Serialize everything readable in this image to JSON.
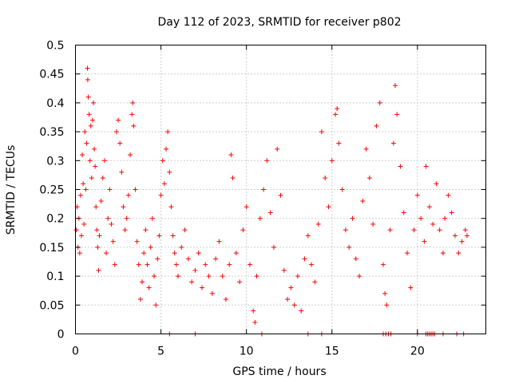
{
  "chart_data": {
    "type": "scatter",
    "title": "Day 112 of 2023, SRMTID for receiver p802",
    "xlabel": "GPS time / hours",
    "ylabel": "SRMTID / TECUs",
    "xlim": [
      0,
      24
    ],
    "ylim": [
      0,
      0.5
    ],
    "xticks": [
      0,
      5,
      10,
      15,
      20
    ],
    "xtick_labels": [
      "0",
      "5",
      "10",
      "15",
      "20"
    ],
    "yticks": [
      0,
      0.05,
      0.1,
      0.15,
      0.2,
      0.25,
      0.3,
      0.35,
      0.4,
      0.45,
      0.5
    ],
    "ytick_labels": [
      "0",
      "0.05",
      "0.1",
      "0.15",
      "0.2",
      "0.25",
      "0.3",
      "0.35",
      "0.4",
      "0.45",
      "0.5"
    ],
    "grid": true,
    "marker": "+",
    "color": "#ff0000",
    "series": [
      {
        "name": "SRMTID",
        "points": [
          [
            0.05,
            0.18
          ],
          [
            0.1,
            0.22
          ],
          [
            0.15,
            0.15
          ],
          [
            0.2,
            0.2
          ],
          [
            0.25,
            0.14
          ],
          [
            0.3,
            0.24
          ],
          [
            0.35,
            0.17
          ],
          [
            0.4,
            0.31
          ],
          [
            0.45,
            0.26
          ],
          [
            0.5,
            0.19
          ],
          [
            0.55,
            0.35
          ],
          [
            0.6,
            0.25
          ],
          [
            0.65,
            0.33
          ],
          [
            0.7,
            0.46
          ],
          [
            0.72,
            0.44
          ],
          [
            0.75,
            0.41
          ],
          [
            0.8,
            0.38
          ],
          [
            0.85,
            0.3
          ],
          [
            0.9,
            0.36
          ],
          [
            0.95,
            0.27
          ],
          [
            1.0,
            0.37
          ],
          [
            1.05,
            0.4
          ],
          [
            1.1,
            0.32
          ],
          [
            1.15,
            0.29
          ],
          [
            1.2,
            0.22
          ],
          [
            1.25,
            0.18
          ],
          [
            1.3,
            0.15
          ],
          [
            1.35,
            0.11
          ],
          [
            1.4,
            0.17
          ],
          [
            1.5,
            0.23
          ],
          [
            1.6,
            0.27
          ],
          [
            1.7,
            0.3
          ],
          [
            1.8,
            0.14
          ],
          [
            1.9,
            0.2
          ],
          [
            2.0,
            0.25
          ],
          [
            2.1,
            0.19
          ],
          [
            2.2,
            0.16
          ],
          [
            2.3,
            0.12
          ],
          [
            2.4,
            0.35
          ],
          [
            2.5,
            0.37
          ],
          [
            2.6,
            0.33
          ],
          [
            2.7,
            0.28
          ],
          [
            2.8,
            0.22
          ],
          [
            2.9,
            0.18
          ],
          [
            3.0,
            0.2
          ],
          [
            3.1,
            0.24
          ],
          [
            3.2,
            0.31
          ],
          [
            3.3,
            0.38
          ],
          [
            3.35,
            0.4
          ],
          [
            3.4,
            0.36
          ],
          [
            3.5,
            0.25
          ],
          [
            3.6,
            0.16
          ],
          [
            3.7,
            0.12
          ],
          [
            3.8,
            0.06
          ],
          [
            3.9,
            0.09
          ],
          [
            4.0,
            0.14
          ],
          [
            4.1,
            0.18
          ],
          [
            4.2,
            0.12
          ],
          [
            4.3,
            0.08
          ],
          [
            4.4,
            0.15
          ],
          [
            4.5,
            0.2
          ],
          [
            4.6,
            0.1
          ],
          [
            4.7,
            0.05
          ],
          [
            4.8,
            0.13
          ],
          [
            4.9,
            0.17
          ],
          [
            5.0,
            0.24
          ],
          [
            5.1,
            0.3
          ],
          [
            5.2,
            0.26
          ],
          [
            5.3,
            0.32
          ],
          [
            5.4,
            0.35
          ],
          [
            5.5,
            0.28
          ],
          [
            5.6,
            0.22
          ],
          [
            5.7,
            0.17
          ],
          [
            5.8,
            0.14
          ],
          [
            5.9,
            0.12
          ],
          [
            6.0,
            0.1
          ],
          [
            6.2,
            0.15
          ],
          [
            6.4,
            0.18
          ],
          [
            6.6,
            0.13
          ],
          [
            6.8,
            0.09
          ],
          [
            7.0,
            0.11
          ],
          [
            7.2,
            0.14
          ],
          [
            7.4,
            0.08
          ],
          [
            7.6,
            0.12
          ],
          [
            7.8,
            0.1
          ],
          [
            8.0,
            0.07
          ],
          [
            8.2,
            0.13
          ],
          [
            8.4,
            0.16
          ],
          [
            8.6,
            0.1
          ],
          [
            8.8,
            0.06
          ],
          [
            9.0,
            0.12
          ],
          [
            9.1,
            0.31
          ],
          [
            9.2,
            0.27
          ],
          [
            9.4,
            0.14
          ],
          [
            9.6,
            0.09
          ],
          [
            9.8,
            0.18
          ],
          [
            10.0,
            0.22
          ],
          [
            10.2,
            0.12
          ],
          [
            10.4,
            0.04
          ],
          [
            10.5,
            0.02
          ],
          [
            10.6,
            0.1
          ],
          [
            10.8,
            0.2
          ],
          [
            11.0,
            0.25
          ],
          [
            11.2,
            0.3
          ],
          [
            11.4,
            0.21
          ],
          [
            11.6,
            0.15
          ],
          [
            11.8,
            0.32
          ],
          [
            12.0,
            0.24
          ],
          [
            12.2,
            0.11
          ],
          [
            12.4,
            0.06
          ],
          [
            12.6,
            0.08
          ],
          [
            12.8,
            0.05
          ],
          [
            13.0,
            0.1
          ],
          [
            13.2,
            0.04
          ],
          [
            13.4,
            0.13
          ],
          [
            13.6,
            0.17
          ],
          [
            13.8,
            0.12
          ],
          [
            14.0,
            0.09
          ],
          [
            14.2,
            0.19
          ],
          [
            14.4,
            0.35
          ],
          [
            14.6,
            0.27
          ],
          [
            14.8,
            0.22
          ],
          [
            15.0,
            0.3
          ],
          [
            15.2,
            0.38
          ],
          [
            15.3,
            0.39
          ],
          [
            15.4,
            0.33
          ],
          [
            15.6,
            0.25
          ],
          [
            15.8,
            0.18
          ],
          [
            16.0,
            0.15
          ],
          [
            16.2,
            0.2
          ],
          [
            16.4,
            0.13
          ],
          [
            16.6,
            0.1
          ],
          [
            16.8,
            0.23
          ],
          [
            17.0,
            0.32
          ],
          [
            17.2,
            0.27
          ],
          [
            17.4,
            0.19
          ],
          [
            17.6,
            0.36
          ],
          [
            17.8,
            0.4
          ],
          [
            18.0,
            0.12
          ],
          [
            18.1,
            0.07
          ],
          [
            18.2,
            0.05
          ],
          [
            18.4,
            0.18
          ],
          [
            18.6,
            0.33
          ],
          [
            18.7,
            0.43
          ],
          [
            18.8,
            0.38
          ],
          [
            19.0,
            0.29
          ],
          [
            19.2,
            0.21
          ],
          [
            19.4,
            0.14
          ],
          [
            19.6,
            0.08
          ],
          [
            19.8,
            0.18
          ],
          [
            20.0,
            0.24
          ],
          [
            20.2,
            0.2
          ],
          [
            20.4,
            0.16
          ],
          [
            20.5,
            0.29
          ],
          [
            20.7,
            0.22
          ],
          [
            20.9,
            0.19
          ],
          [
            21.1,
            0.26
          ],
          [
            21.3,
            0.18
          ],
          [
            21.5,
            0.14
          ],
          [
            21.6,
            0.2
          ],
          [
            21.8,
            0.24
          ],
          [
            22.0,
            0.21
          ],
          [
            22.2,
            0.17
          ],
          [
            22.4,
            0.14
          ],
          [
            22.6,
            0.16
          ],
          [
            22.8,
            0.18
          ],
          [
            22.9,
            0.17
          ]
        ]
      }
    ],
    "zero_points_x": [
      5.5,
      7.0,
      10.9,
      13.6,
      14.4,
      18.0,
      18.15,
      18.3,
      18.45,
      20.0,
      20.5,
      20.6,
      20.7,
      20.8,
      20.9,
      21.0,
      21.5,
      22.3,
      22.7
    ]
  }
}
